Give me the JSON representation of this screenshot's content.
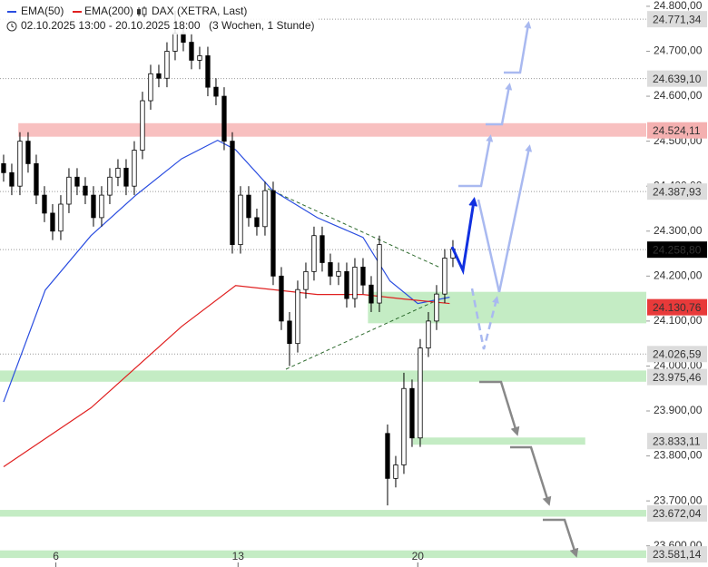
{
  "chart_data": {
    "type": "candlestick",
    "title": "DAX (XETRA, Last)",
    "subtitle": "02.10.2025 13:00 - 20.10.2025 18:00",
    "period": "(3 Wochen, 1 Stunde)",
    "up_color": "#ffffff",
    "down_color": "#000000",
    "wick_color": "#000000",
    "open": [
      24450,
      24430,
      24400,
      24500,
      24450,
      24380,
      24340,
      24300,
      24360,
      24420,
      24400,
      24380,
      24330,
      24380,
      24420,
      24440,
      24400,
      24480,
      24590,
      24650,
      24640,
      24700,
      24740,
      24720,
      24680,
      24690,
      24620,
      24600,
      24500,
      24270,
      24380,
      24330,
      24310,
      24390,
      24200,
      24100,
      24050,
      24170,
      24210,
      24290,
      24230,
      24200,
      24210,
      24150,
      24220,
      24180,
      24140,
      23850,
      23750,
      23780,
      23950,
      23840,
      24040,
      24100,
      24160,
      24240
    ],
    "high": [
      24470,
      24450,
      24520,
      24520,
      24470,
      24400,
      24360,
      24380,
      24440,
      24440,
      24420,
      24400,
      24400,
      24440,
      24460,
      24460,
      24500,
      24610,
      24670,
      24670,
      24720,
      24790,
      24760,
      24740,
      24710,
      24710,
      24640,
      24620,
      24520,
      24400,
      24400,
      24350,
      24410,
      24410,
      24220,
      24120,
      24190,
      24230,
      24310,
      24310,
      24250,
      24230,
      24230,
      24240,
      24240,
      24200,
      24290,
      23870,
      23800,
      23985,
      23970,
      24060,
      24120,
      24180,
      24260,
      24280
    ],
    "low": [
      24410,
      24380,
      24380,
      24430,
      24360,
      24320,
      24280,
      24280,
      24340,
      24380,
      24360,
      24310,
      24310,
      24360,
      24400,
      24380,
      24380,
      24460,
      24570,
      24620,
      24620,
      24680,
      24700,
      24660,
      24660,
      24600,
      24580,
      24480,
      24250,
      24250,
      24310,
      24290,
      24290,
      24180,
      24080,
      24000,
      24030,
      24150,
      24190,
      24210,
      24180,
      24180,
      24130,
      24130,
      24160,
      24120,
      24120,
      23690,
      23730,
      23760,
      23820,
      23820,
      24020,
      24080,
      24140,
      24220
    ],
    "close": [
      24430,
      24400,
      24500,
      24450,
      24380,
      24340,
      24300,
      24360,
      24420,
      24400,
      24380,
      24330,
      24380,
      24420,
      24440,
      24400,
      24480,
      24590,
      24650,
      24640,
      24700,
      24740,
      24720,
      24680,
      24690,
      24620,
      24600,
      24500,
      24270,
      24380,
      24330,
      24310,
      24390,
      24200,
      24100,
      24050,
      24170,
      24210,
      24290,
      24230,
      24200,
      24210,
      24150,
      24220,
      24180,
      24140,
      24270,
      23750,
      23780,
      23950,
      23840,
      24040,
      24100,
      24160,
      24240,
      24260
    ],
    "series": [
      {
        "name": "EMA(50)",
        "color": "#2a4de0",
        "x": [
          0,
          5.1,
          10.7,
          16.2,
          21.8,
          26.2,
          28.4,
          32.9,
          38.4,
          44,
          47.3,
          50.7,
          54.6
        ],
        "values": [
          23920,
          24169,
          24290,
          24380,
          24461,
          24502,
          24481,
          24391,
          24330,
          24286,
          24189,
          24139,
          24153
        ]
      },
      {
        "name": "EMA(200)",
        "color": "#e02020",
        "x": [
          0,
          10.7,
          21.8,
          28.4,
          38.4,
          44,
          49,
          54.6
        ],
        "values": [
          23776,
          23907,
          24088,
          24179,
          24159,
          24159,
          24149,
          24139
        ]
      }
    ],
    "xlim": [
      -0.44,
      78.67
    ],
    "xticks": [
      {
        "value": 6.4,
        "label": "6"
      },
      {
        "value": 28.7,
        "label": "13"
      },
      {
        "value": 50.7,
        "label": "20"
      }
    ],
    "ylim": [
      23553,
      24814
    ],
    "yticks": [
      {
        "value": 24800,
        "label": "24.800,00"
      },
      {
        "value": 24700,
        "label": "24.700,00"
      },
      {
        "value": 24600,
        "label": "24.600,00"
      },
      {
        "value": 24500,
        "label": "24.500,00"
      },
      {
        "value": 24400,
        "label": "24.400,00"
      },
      {
        "value": 24300,
        "label": "24.300,00"
      },
      {
        "value": 24200,
        "label": "24.200,00"
      },
      {
        "value": 24100,
        "label": "24.100,00"
      },
      {
        "value": 24000,
        "label": "24.000,00"
      },
      {
        "value": 23900,
        "label": "23.900,00"
      },
      {
        "value": 23800,
        "label": "23.800,00"
      },
      {
        "value": 23700,
        "label": "23.700,00"
      },
      {
        "value": 23600,
        "label": "23.600,00"
      }
    ],
    "levels": [
      {
        "value": 24771.34,
        "label": "24.771,34",
        "box_color": "#dcdcdc",
        "text_color": "#333333",
        "band_color": null,
        "band_range": null,
        "band_x": null
      },
      {
        "value": 24639.1,
        "label": "24.639,10",
        "box_color": "#dcdcdc",
        "text_color": "#333333",
        "band_color": null,
        "band_range": null,
        "band_x": null
      },
      {
        "value": 24524.11,
        "label": "24.524,11",
        "box_color": "#f4b0b0",
        "text_color": "#333333",
        "band_color": "#f8c0c0",
        "band_range": [
          24510,
          24540
        ],
        "band_x": [
          1.8,
          78.67
        ]
      },
      {
        "value": 24387.93,
        "label": "24.387,93",
        "box_color": "#dcdcdc",
        "text_color": "#333333",
        "band_color": null,
        "band_range": null,
        "band_x": null
      },
      {
        "value": 24258.8,
        "label": "24.258,80",
        "box_color": "#000000",
        "text_color": "#ffffff",
        "band_color": null,
        "band_range": null,
        "band_x": null
      },
      {
        "value": 24130.76,
        "label": "24.130,76",
        "box_color": "#e83a3a",
        "text_color": "#222222",
        "band_color": "#c4ecc4",
        "band_range": [
          24095,
          24165
        ],
        "band_x": [
          44.6,
          78.67
        ]
      },
      {
        "value": 24026.59,
        "label": "24.026,59",
        "box_color": "#dcdcdc",
        "text_color": "#333333",
        "band_color": null,
        "band_range": null,
        "band_x": null
      },
      {
        "value": 23975.46,
        "label": "23.975,46",
        "box_color": "#dcdcdc",
        "text_color": "#333333",
        "band_color": "#c4ecc4",
        "band_range": [
          23965,
          23990
        ],
        "band_x": [
          -0.44,
          78.67
        ]
      },
      {
        "value": 23833.11,
        "label": "23.833,11",
        "box_color": "#dcdcdc",
        "text_color": "#333333",
        "band_color": "#c4ecc4",
        "band_range": [
          23825,
          23841
        ],
        "band_x": [
          50.1,
          71.2
        ]
      },
      {
        "value": 23672.04,
        "label": "23.672,04",
        "box_color": "#dcdcdc",
        "text_color": "#333333",
        "band_color": "#c4ecc4",
        "band_range": [
          23665,
          23680
        ],
        "band_x": [
          -0.44,
          78.67
        ]
      },
      {
        "value": 23581.14,
        "label": "23.581,14",
        "box_color": "#dcdcdc",
        "text_color": "#333333",
        "band_color": "#c4ecc4",
        "band_range": [
          23573,
          23590
        ],
        "band_x": [
          -0.44,
          78.67
        ]
      }
    ]
  }
}
